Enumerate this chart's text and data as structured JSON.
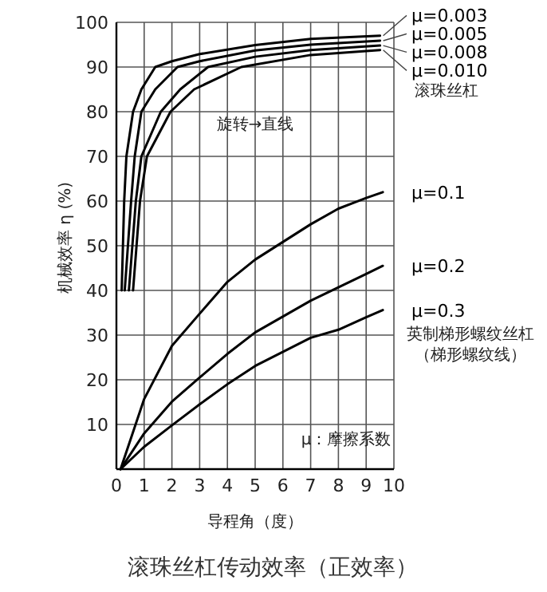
{
  "chart_data": {
    "type": "line",
    "title": "滚珠丝杠传动效率（正效率）",
    "xlabel": "导程角（度）",
    "ylabel": "机械效率 η (%)",
    "annotations": [
      "滚珠丝杠",
      "旋转→直线",
      "英制梯形螺纹丝杠",
      "（梯形螺纹线）",
      "μ：摩擦系数"
    ],
    "xlim": [
      0,
      10
    ],
    "ylim": [
      0,
      100
    ],
    "xticks": [
      0,
      1,
      2,
      3,
      4,
      5,
      6,
      7,
      8,
      9,
      10
    ],
    "yticks": [
      10,
      20,
      30,
      40,
      50,
      60,
      70,
      80,
      90,
      100
    ],
    "grid": true,
    "series": [
      {
        "name": "μ=0.003",
        "color": "#000000",
        "x": [
          0.19,
          0.28,
          0.36,
          0.6,
          0.9,
          1.4,
          2,
          3,
          5,
          7,
          9.5
        ],
        "values": [
          40,
          60,
          70,
          80,
          85,
          90,
          91.3,
          92.9,
          94.9,
          96.3,
          97
        ]
      },
      {
        "name": "μ=0.005",
        "color": "#000000",
        "x": [
          0.3,
          0.53,
          0.66,
          0.9,
          1.4,
          2.2,
          3,
          5,
          7,
          9.5
        ],
        "values": [
          40,
          60,
          70,
          80,
          85,
          90,
          91.3,
          93.7,
          95,
          95.9
        ]
      },
      {
        "name": "μ=0.008",
        "color": "#000000",
        "x": [
          0.45,
          0.7,
          0.9,
          1.6,
          2.3,
          3.3,
          5,
          7,
          9.5
        ],
        "values": [
          40,
          60,
          70,
          80,
          85,
          90,
          92.3,
          93.8,
          94.8
        ]
      },
      {
        "name": "μ=0.010",
        "color": "#000000",
        "x": [
          0.6,
          0.85,
          1.1,
          1.95,
          2.8,
          4.5,
          7,
          9.5
        ],
        "values": [
          40,
          60,
          70,
          80,
          85,
          90,
          92.7,
          93.8
        ]
      },
      {
        "name": "μ=0.1",
        "color": "#000000",
        "x": [
          0.15,
          1,
          2,
          3,
          4,
          5,
          7,
          8,
          9,
          9.6
        ],
        "values": [
          0,
          15.7,
          27.6,
          34.8,
          41.9,
          46.9,
          54.8,
          58.3,
          60.7,
          62
        ]
      },
      {
        "name": "μ=0.2",
        "color": "#000000",
        "x": [
          0.15,
          1,
          2,
          3,
          4,
          5,
          7,
          8,
          9,
          9.6
        ],
        "values": [
          0,
          8,
          15.1,
          20.5,
          25.8,
          30.6,
          37.7,
          40.7,
          43.7,
          45.5
        ]
      },
      {
        "name": "μ=0.3",
        "color": "#000000",
        "x": [
          0.15,
          1,
          2,
          3,
          4,
          5,
          7,
          8,
          9,
          9.6
        ],
        "values": [
          0,
          5,
          9.8,
          14.5,
          19,
          23.1,
          29.4,
          31.2,
          34,
          35.6
        ]
      }
    ]
  }
}
